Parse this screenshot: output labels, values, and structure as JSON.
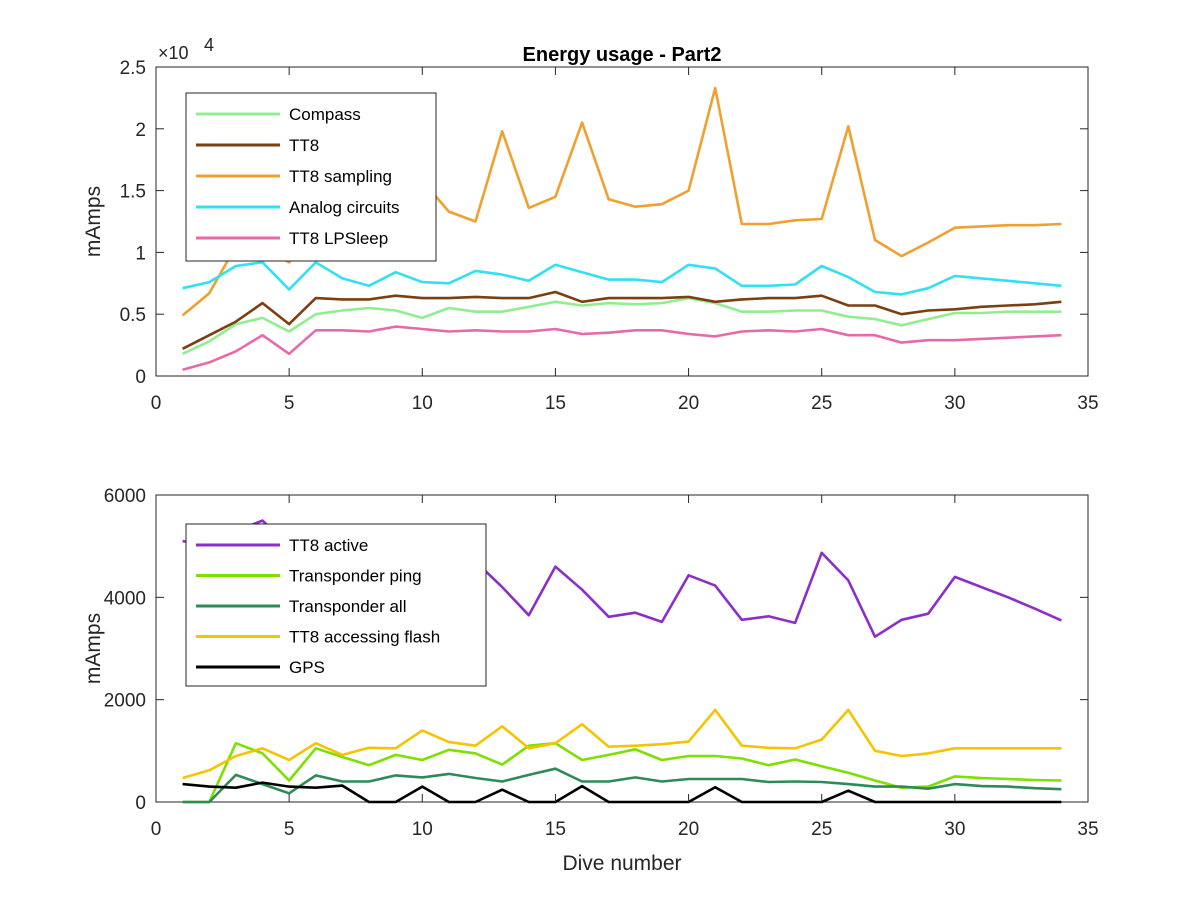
{
  "figure": {
    "title": "Energy usage - Part2"
  },
  "chart_data": [
    {
      "type": "line",
      "title": "Energy usage - Part2",
      "xlabel": "",
      "ylabel": "mAmps",
      "xlim": [
        0,
        35
      ],
      "ylim": [
        0,
        25000
      ],
      "exponent_label": "×10",
      "exponent_power": "4",
      "xticks": [
        0,
        5,
        10,
        15,
        20,
        25,
        30,
        35
      ],
      "xtick_labels": [
        "0",
        "5",
        "10",
        "15",
        "20",
        "25",
        "30",
        "35"
      ],
      "yticks": [
        0,
        5000,
        10000,
        15000,
        20000,
        25000
      ],
      "ytick_labels": [
        "0",
        "0.5",
        "1",
        "1.5",
        "2",
        "2.5"
      ],
      "grid": false,
      "legend_position": "top-left",
      "x": [
        1,
        2,
        3,
        4,
        5,
        6,
        7,
        8,
        9,
        10,
        11,
        12,
        13,
        14,
        15,
        16,
        17,
        18,
        19,
        20,
        21,
        22,
        23,
        24,
        25,
        26,
        27,
        28,
        29,
        30,
        31,
        32,
        33,
        34
      ],
      "series": [
        {
          "name": "Compass",
          "color": "#90ee90",
          "values": [
            1800,
            2800,
            4200,
            4700,
            3600,
            5000,
            5300,
            5500,
            5300,
            4700,
            5500,
            5200,
            5200,
            5600,
            6000,
            5700,
            5900,
            5800,
            5900,
            6300,
            5900,
            5200,
            5200,
            5300,
            5300,
            4800,
            4600,
            4100,
            4600,
            5100,
            5100,
            5200,
            5200,
            5200
          ]
        },
        {
          "name": "TT8",
          "color": "#7b3f10",
          "values": [
            2200,
            3300,
            4400,
            5900,
            4200,
            6300,
            6200,
            6200,
            6500,
            6300,
            6300,
            6400,
            6300,
            6300,
            6800,
            6000,
            6300,
            6300,
            6300,
            6400,
            6000,
            6200,
            6300,
            6300,
            6500,
            5700,
            5700,
            5000,
            5300,
            5400,
            5600,
            5700,
            5800,
            6000
          ]
        },
        {
          "name": "TT8 sampling",
          "color": "#f0a030",
          "values": [
            4900,
            6700,
            10500,
            10300,
            9200,
            12000,
            12000,
            12500,
            12500,
            15800,
            13300,
            12500,
            19800,
            13600,
            14500,
            20500,
            14300,
            13700,
            13900,
            15000,
            23300,
            12300,
            12300,
            12600,
            12700,
            20200,
            11000,
            9700,
            10800,
            12000,
            12100,
            12200,
            12200,
            12300
          ]
        },
        {
          "name": "Analog circuits",
          "color": "#33e0ef",
          "values": [
            7100,
            7600,
            8900,
            9200,
            7000,
            9200,
            7900,
            7300,
            8400,
            7600,
            7500,
            8500,
            8200,
            7700,
            9000,
            8400,
            7800,
            7800,
            7600,
            9000,
            8700,
            7300,
            7300,
            7400,
            8900,
            8000,
            6800,
            6600,
            7100,
            8100,
            7900,
            7700,
            7500,
            7300
          ]
        },
        {
          "name": "TT8 LPSleep",
          "color": "#e66aa8",
          "values": [
            500,
            1100,
            2000,
            3300,
            1800,
            3700,
            3700,
            3600,
            4000,
            3800,
            3600,
            3700,
            3600,
            3600,
            3800,
            3400,
            3500,
            3700,
            3700,
            3400,
            3200,
            3600,
            3700,
            3600,
            3800,
            3300,
            3300,
            2700,
            2900,
            2900,
            3000,
            3100,
            3200,
            3300
          ]
        }
      ]
    },
    {
      "type": "line",
      "title": "",
      "xlabel": "Dive number",
      "ylabel": "mAmps",
      "xlim": [
        0,
        35
      ],
      "ylim": [
        0,
        6000
      ],
      "xticks": [
        0,
        5,
        10,
        15,
        20,
        25,
        30,
        35
      ],
      "xtick_labels": [
        "0",
        "5",
        "10",
        "15",
        "20",
        "25",
        "30",
        "35"
      ],
      "yticks": [
        0,
        2000,
        4000,
        6000
      ],
      "ytick_labels": [
        "0",
        "2000",
        "4000",
        "6000"
      ],
      "grid": false,
      "legend_position": "top-left",
      "x": [
        1,
        2,
        3,
        4,
        5,
        6,
        7,
        8,
        9,
        10,
        11,
        12,
        13,
        14,
        15,
        16,
        17,
        18,
        19,
        20,
        21,
        22,
        23,
        24,
        25,
        26,
        27,
        28,
        29,
        30,
        31,
        32,
        33,
        34
      ],
      "series": [
        {
          "name": "TT8 active",
          "color": "#8b2fc9",
          "values": [
            5100,
            5000,
            5300,
            5500,
            5000,
            5200,
            5000,
            4900,
            4800,
            4600,
            4500,
            4700,
            4200,
            3650,
            4600,
            4150,
            3620,
            3700,
            3520,
            4430,
            4230,
            3560,
            3630,
            3500,
            4870,
            4330,
            3230,
            3560,
            3680,
            4400,
            4200,
            4000,
            3780,
            3550
          ]
        },
        {
          "name": "Transponder ping",
          "color": "#7ce000",
          "values": [
            0,
            0,
            1150,
            950,
            420,
            1050,
            880,
            720,
            920,
            820,
            1020,
            950,
            730,
            1100,
            1150,
            820,
            920,
            1030,
            820,
            900,
            900,
            850,
            720,
            830,
            700,
            570,
            420,
            280,
            300,
            500,
            470,
            450,
            430,
            420
          ]
        },
        {
          "name": "Transponder all",
          "color": "#2e8b57",
          "values": [
            0,
            0,
            530,
            350,
            170,
            520,
            400,
            400,
            520,
            480,
            550,
            470,
            400,
            530,
            650,
            400,
            400,
            480,
            400,
            450,
            450,
            450,
            390,
            400,
            390,
            350,
            300,
            300,
            260,
            350,
            310,
            300,
            270,
            250
          ]
        },
        {
          "name": "TT8 accessing flash",
          "color": "#f5c400",
          "values": [
            470,
            620,
            900,
            1050,
            820,
            1150,
            920,
            1060,
            1050,
            1400,
            1170,
            1100,
            1480,
            1050,
            1150,
            1520,
            1080,
            1100,
            1130,
            1180,
            1800,
            1100,
            1060,
            1050,
            1220,
            1800,
            1000,
            900,
            950,
            1050,
            1050,
            1050,
            1050,
            1050
          ]
        },
        {
          "name": "GPS",
          "color": "#000000",
          "values": [
            350,
            300,
            280,
            380,
            300,
            280,
            320,
            0,
            0,
            300,
            0,
            0,
            240,
            0,
            0,
            310,
            0,
            0,
            0,
            0,
            290,
            0,
            0,
            0,
            0,
            220,
            0,
            0,
            0,
            0,
            0,
            0,
            0,
            0
          ]
        }
      ]
    }
  ]
}
